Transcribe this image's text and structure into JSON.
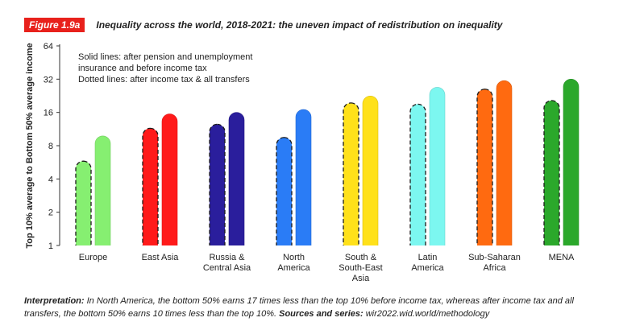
{
  "header": {
    "figure_label": "Figure 1.9a",
    "title": "Inequality across the world, 2018-2021: the uneven impact of redistribution on inequality"
  },
  "footer": {
    "interp_label": "Interpretation:",
    "interp_text": " In North America, the bottom 50% earns 17 times less than the top 10% before income tax, whereas after income tax and all transfers, the bottom 50% earns 10 times less than the top 10%.",
    "sources_label": " Sources and series:",
    "sources_text": " wir2022.wid.world/methodology"
  },
  "chart_data": {
    "type": "bar",
    "title": "Inequality across the world, 2018-2021: the uneven impact of redistribution on inequality",
    "ylabel": "Top 10% average to Bottom 50% average income",
    "xlabel": "",
    "y_scale": "log2",
    "ylim": [
      1,
      64
    ],
    "yticks": [
      1,
      2,
      4,
      8,
      16,
      32,
      64
    ],
    "grid": false,
    "legend_note": [
      "Solid lines: after pension and unemployment",
      "insurance and before income tax",
      "Dotted lines: after income tax & all transfers"
    ],
    "categories": [
      [
        "Europe"
      ],
      [
        "East Asia"
      ],
      [
        "Russia &",
        "Central Asia"
      ],
      [
        "North",
        "America"
      ],
      [
        "South &",
        "South-East",
        "Asia"
      ],
      [
        "Latin",
        "America"
      ],
      [
        "Sub-Saharan",
        "Africa"
      ],
      [
        "MENA"
      ]
    ],
    "series": [
      {
        "name": "Dotted lines: after income tax & all transfers",
        "style": "dashed",
        "values": [
          5.8,
          11.5,
          12.5,
          9.5,
          19.5,
          19,
          26,
          20.5
        ]
      },
      {
        "name": "Solid lines: after pension and unemployment insurance and before income tax",
        "style": "solid",
        "values": [
          9.8,
          15.5,
          16,
          17,
          22.5,
          27,
          31,
          32
        ]
      }
    ],
    "colors": [
      "#86ef71",
      "#ff1a1a",
      "#2a1e9c",
      "#2a7cf6",
      "#ffe11a",
      "#7cf7f0",
      "#ff6a10",
      "#2ba82b"
    ]
  }
}
